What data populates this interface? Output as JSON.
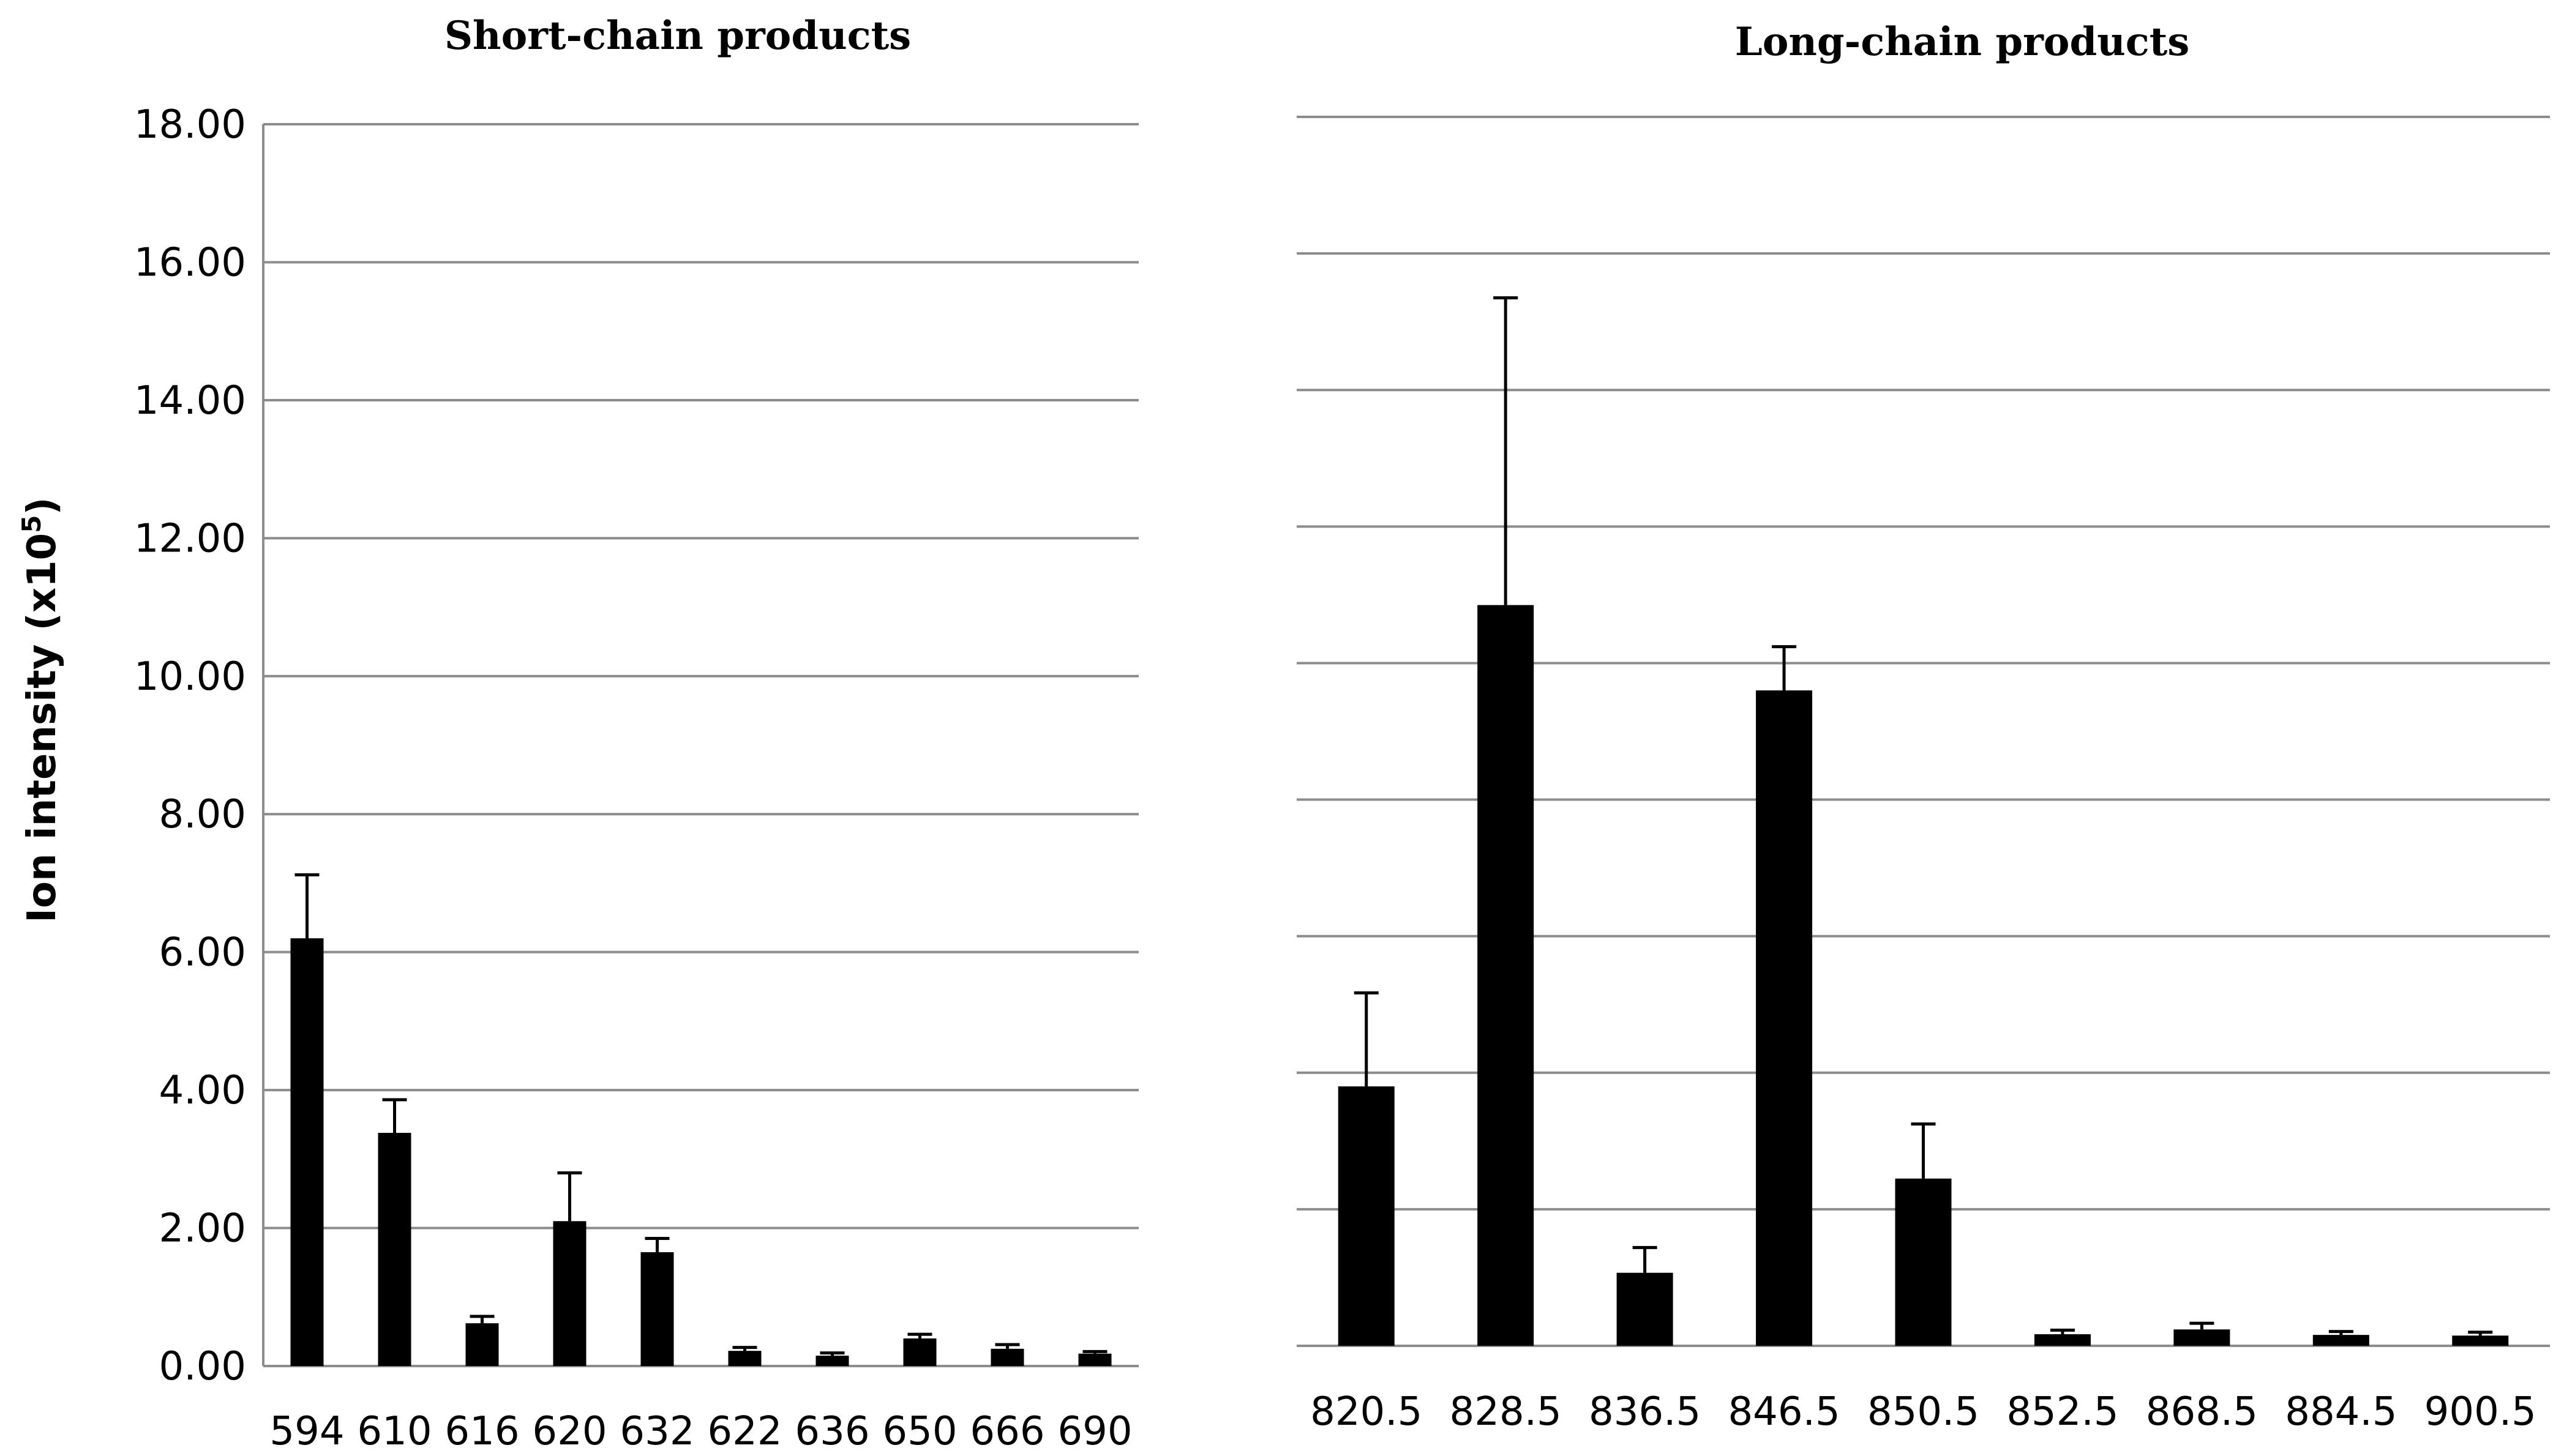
{
  "chart_data": [
    {
      "type": "bar",
      "title": "Short-chain products",
      "ylabel": "Ion intensity (x10",
      "ylabel_sup": "5",
      "ylabel_end": ")",
      "ylim": [
        0,
        18
      ],
      "yticks": [
        "0.00",
        "2.00",
        "4.00",
        "6.00",
        "8.00",
        "10.00",
        "12.00",
        "14.00",
        "16.00",
        "18.00"
      ],
      "grid": true,
      "categories": [
        "594",
        "610",
        "616",
        "620",
        "632",
        "622",
        "636",
        "650",
        "666",
        "690"
      ],
      "values": [
        6.2,
        3.38,
        0.62,
        2.1,
        1.65,
        0.22,
        0.15,
        0.4,
        0.25,
        0.18
      ],
      "errors": [
        0.92,
        0.48,
        0.1,
        0.7,
        0.2,
        0.05,
        0.04,
        0.06,
        0.06,
        0.03
      ]
    },
    {
      "type": "bar",
      "title": "Long-chain products",
      "ylim": [
        0,
        18
      ],
      "grid": true,
      "categories": [
        "820.5",
        "828.5",
        "836.5",
        "846.5",
        "850.5",
        "852.5",
        "868.5",
        "884.5",
        "900.5"
      ],
      "values": [
        3.8,
        10.85,
        1.07,
        9.6,
        2.45,
        0.17,
        0.24,
        0.16,
        0.15
      ],
      "errors": [
        1.37,
        4.5,
        0.37,
        0.64,
        0.8,
        0.06,
        0.09,
        0.05,
        0.05
      ]
    }
  ]
}
